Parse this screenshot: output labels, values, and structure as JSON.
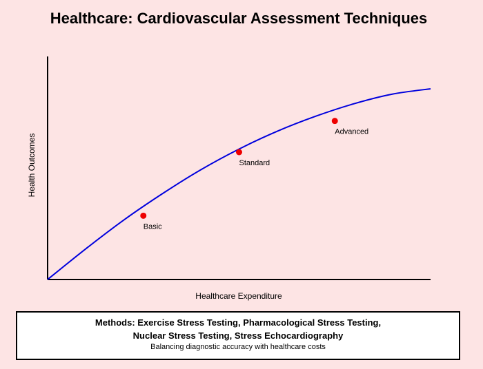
{
  "chart_data": {
    "type": "line",
    "title": "Healthcare: Cardiovascular Assessment Techniques",
    "xlabel": "Healthcare Expenditure",
    "ylabel": "Health Outcomes",
    "xlim": [
      0,
      100
    ],
    "ylim": [
      0,
      100
    ],
    "grid": false,
    "curve": {
      "x": [
        0,
        10,
        20,
        30,
        40,
        50,
        60,
        70,
        80,
        90,
        100
      ],
      "y": [
        0,
        13.8,
        26.8,
        38.5,
        49.2,
        58.5,
        66.5,
        73.2,
        78.8,
        83.1,
        85.5
      ],
      "color": "#0000dd"
    },
    "points": [
      {
        "label": "Basic",
        "x": 25,
        "y": 28.6
      },
      {
        "label": "Standard",
        "x": 50,
        "y": 57.1
      },
      {
        "label": "Advanced",
        "x": 75,
        "y": 71.1
      }
    ],
    "point_color": "#ee0000"
  },
  "info_box": {
    "methods_line1": "Methods: Exercise Stress Testing, Pharmacological Stress Testing,",
    "methods_line2": "Nuclear Stress Testing, Stress Echocardiography",
    "subtitle": "Balancing diagnostic accuracy with healthcare costs"
  }
}
